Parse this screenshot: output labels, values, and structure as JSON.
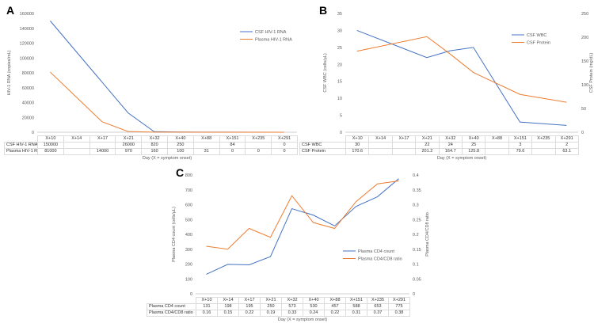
{
  "figure_title": "",
  "chart_data": [
    {
      "panel": "A",
      "type": "line",
      "categories": [
        "X+10",
        "X+14",
        "X+17",
        "X+21",
        "X+32",
        "X+40",
        "X+88",
        "X+151",
        "X+235",
        "X+291"
      ],
      "xlabel": "Day (X = symptom onset)",
      "left_axis": {
        "title": "HIV-1 RNA (copies/mL)",
        "min": 0,
        "max": 160000,
        "ticks": [
          0,
          20000,
          40000,
          60000,
          80000,
          100000,
          120000,
          140000,
          160000
        ]
      },
      "right_axis": null,
      "legend_position": "inside-top-right",
      "grid": false,
      "series": [
        {
          "name": "CSF HIV-1 RNA",
          "axis": "left",
          "color": "#4472c4",
          "values": [
            150000,
            null,
            null,
            26000,
            820,
            250,
            null,
            84,
            null,
            0
          ]
        },
        {
          "name": "Plasma HIV-1 RNA",
          "axis": "left",
          "color": "#ed7d31",
          "values": [
            81000,
            null,
            14000,
            970,
            160,
            100,
            31,
            0,
            0,
            0
          ]
        }
      ]
    },
    {
      "panel": "B",
      "type": "line",
      "categories": [
        "X+10",
        "X+14",
        "X+17",
        "X+21",
        "X+32",
        "X+40",
        "X+88",
        "X+151",
        "X+235",
        "X+291"
      ],
      "xlabel": "Day (X = symptom onset)",
      "left_axis": {
        "title": "CSF WBC (cells/µL)",
        "min": 0,
        "max": 35,
        "ticks": [
          0,
          5,
          10,
          15,
          20,
          25,
          30,
          35
        ]
      },
      "right_axis": {
        "title": "CSF Protein (mg/dL)",
        "min": 0,
        "max": 250,
        "ticks": [
          0,
          50,
          100,
          150,
          200,
          250
        ]
      },
      "legend_position": "inside-top-right",
      "grid": false,
      "series": [
        {
          "name": "CSF WBC",
          "axis": "left",
          "color": "#4472c4",
          "values": [
            30,
            null,
            null,
            22,
            24,
            25,
            null,
            3,
            null,
            2
          ]
        },
        {
          "name": "CSF Protein",
          "axis": "right",
          "color": "#ed7d31",
          "values": [
            170.6,
            null,
            null,
            201.2,
            164.7,
            125.8,
            null,
            79.6,
            null,
            63.1
          ]
        }
      ]
    },
    {
      "panel": "C",
      "type": "line",
      "categories": [
        "X+10",
        "X+14",
        "X+17",
        "X+21",
        "X+32",
        "X+40",
        "X+88",
        "X+151",
        "X+235",
        "X+291"
      ],
      "xlabel": "Day (X = symptom onset)",
      "left_axis": {
        "title": "Plasma CD4 count (cells/µL)",
        "min": 0,
        "max": 800,
        "ticks": [
          0,
          100,
          200,
          300,
          400,
          500,
          600,
          700,
          800
        ]
      },
      "right_axis": {
        "title": "Plasma CD4/CD8 ratio",
        "min": 0,
        "max": 0.4,
        "ticks": [
          0,
          0.05,
          0.1,
          0.15,
          0.2,
          0.25,
          0.3,
          0.35,
          0.4
        ]
      },
      "legend_position": "inside-right-middle",
      "grid": false,
      "series": [
        {
          "name": "Plasma CD4 count",
          "axis": "left",
          "color": "#4472c4",
          "values": [
            131,
            198,
            195,
            250,
            573,
            530,
            457,
            588,
            653,
            775
          ]
        },
        {
          "name": "Plasma CD4/CD8 ratio",
          "axis": "right",
          "color": "#ed7d31",
          "values": [
            0.16,
            0.15,
            0.22,
            0.19,
            0.33,
            0.24,
            0.22,
            0.31,
            0.37,
            0.38
          ]
        }
      ]
    }
  ]
}
